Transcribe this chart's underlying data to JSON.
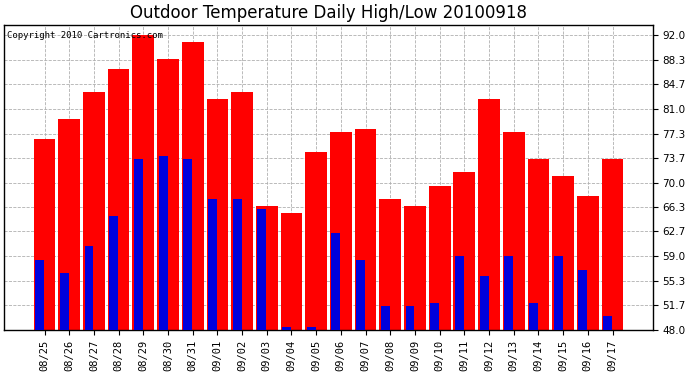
{
  "title": "Outdoor Temperature Daily High/Low 20100918",
  "copyright": "Copyright 2010 Cartronics.com",
  "dates": [
    "08/25",
    "08/26",
    "08/27",
    "08/28",
    "08/29",
    "08/30",
    "08/31",
    "09/01",
    "09/02",
    "09/03",
    "09/04",
    "09/05",
    "09/06",
    "09/07",
    "09/08",
    "09/09",
    "09/10",
    "09/11",
    "09/12",
    "09/13",
    "09/14",
    "09/15",
    "09/16",
    "09/17"
  ],
  "highs": [
    76.5,
    79.5,
    83.5,
    87.0,
    92.0,
    88.5,
    91.0,
    82.5,
    83.5,
    66.5,
    65.5,
    74.5,
    77.5,
    78.0,
    67.5,
    66.5,
    69.5,
    71.5,
    82.5,
    77.5,
    73.5,
    71.0,
    68.0,
    73.5
  ],
  "lows": [
    58.5,
    56.5,
    60.5,
    65.0,
    73.5,
    74.0,
    73.5,
    67.5,
    67.5,
    66.0,
    48.5,
    48.5,
    62.5,
    58.5,
    51.5,
    51.5,
    52.0,
    59.0,
    56.0,
    59.0,
    52.0,
    59.0,
    57.0,
    50.0
  ],
  "high_color": "#ff0000",
  "low_color": "#0000dd",
  "background_color": "#ffffff",
  "plot_background": "#ffffff",
  "grid_color": "#b0b0b0",
  "yticks": [
    48.0,
    51.7,
    55.3,
    59.0,
    62.7,
    66.3,
    70.0,
    73.7,
    77.3,
    81.0,
    84.7,
    88.3,
    92.0
  ],
  "ymin": 48.0,
  "ymax": 93.5,
  "title_fontsize": 12,
  "tick_fontsize": 7.5,
  "bar_width": 0.4
}
